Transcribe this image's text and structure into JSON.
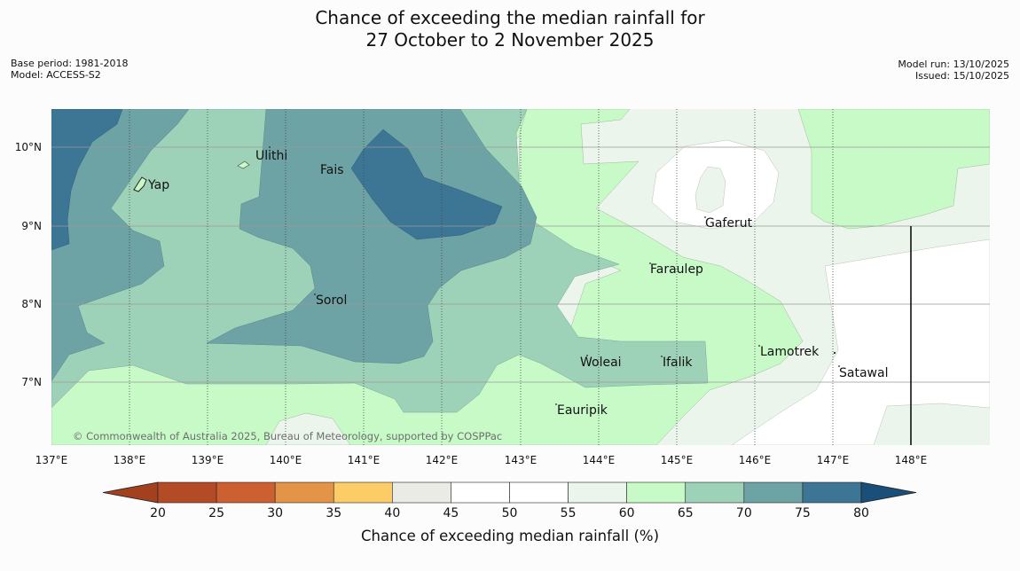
{
  "title": {
    "line1": "Chance of exceeding the median rainfall for",
    "line2": "27 October to 2 November 2025"
  },
  "meta_left": {
    "base_period": "Base period: 1981-2018",
    "model": "Model: ACCESS-S2"
  },
  "meta_right": {
    "model_run": "Model run: 13/10/2025",
    "issued": "Issued: 15/10/2025"
  },
  "map": {
    "longitude_ticks": [
      "137°E",
      "138°E",
      "139°E",
      "140°E",
      "141°E",
      "142°E",
      "143°E",
      "144°E",
      "145°E",
      "146°E",
      "147°E",
      "148°E"
    ],
    "latitude_ticks": [
      "10°N",
      "9°N",
      "8°N",
      "7°N"
    ],
    "places": [
      "Yap",
      "Ulithi",
      "Fais",
      "Gaferut",
      "Faraulep",
      "Sorol",
      "Woleai",
      "Ifalik",
      "Lamotrek",
      "Satawal",
      "Eauripik"
    ],
    "copyright": "© Commonwealth of Australia 2025, Bureau of Meteorology, supported by COSPPac"
  },
  "legend": {
    "title": "Chance of exceeding median rainfall (%)",
    "ticks": [
      "20",
      "25",
      "30",
      "35",
      "40",
      "45",
      "50",
      "55",
      "60",
      "65",
      "70",
      "75",
      "80"
    ],
    "colors": [
      "#a3411e",
      "#b44b27",
      "#cd6031",
      "#e39447",
      "#fccd66",
      "#ebebe6",
      "#ffffff",
      "#ffffff",
      "#ebf5eb",
      "#c8fac8",
      "#9ed2b8",
      "#6ea3a5",
      "#3d7595",
      "#1a4f7a"
    ]
  }
}
